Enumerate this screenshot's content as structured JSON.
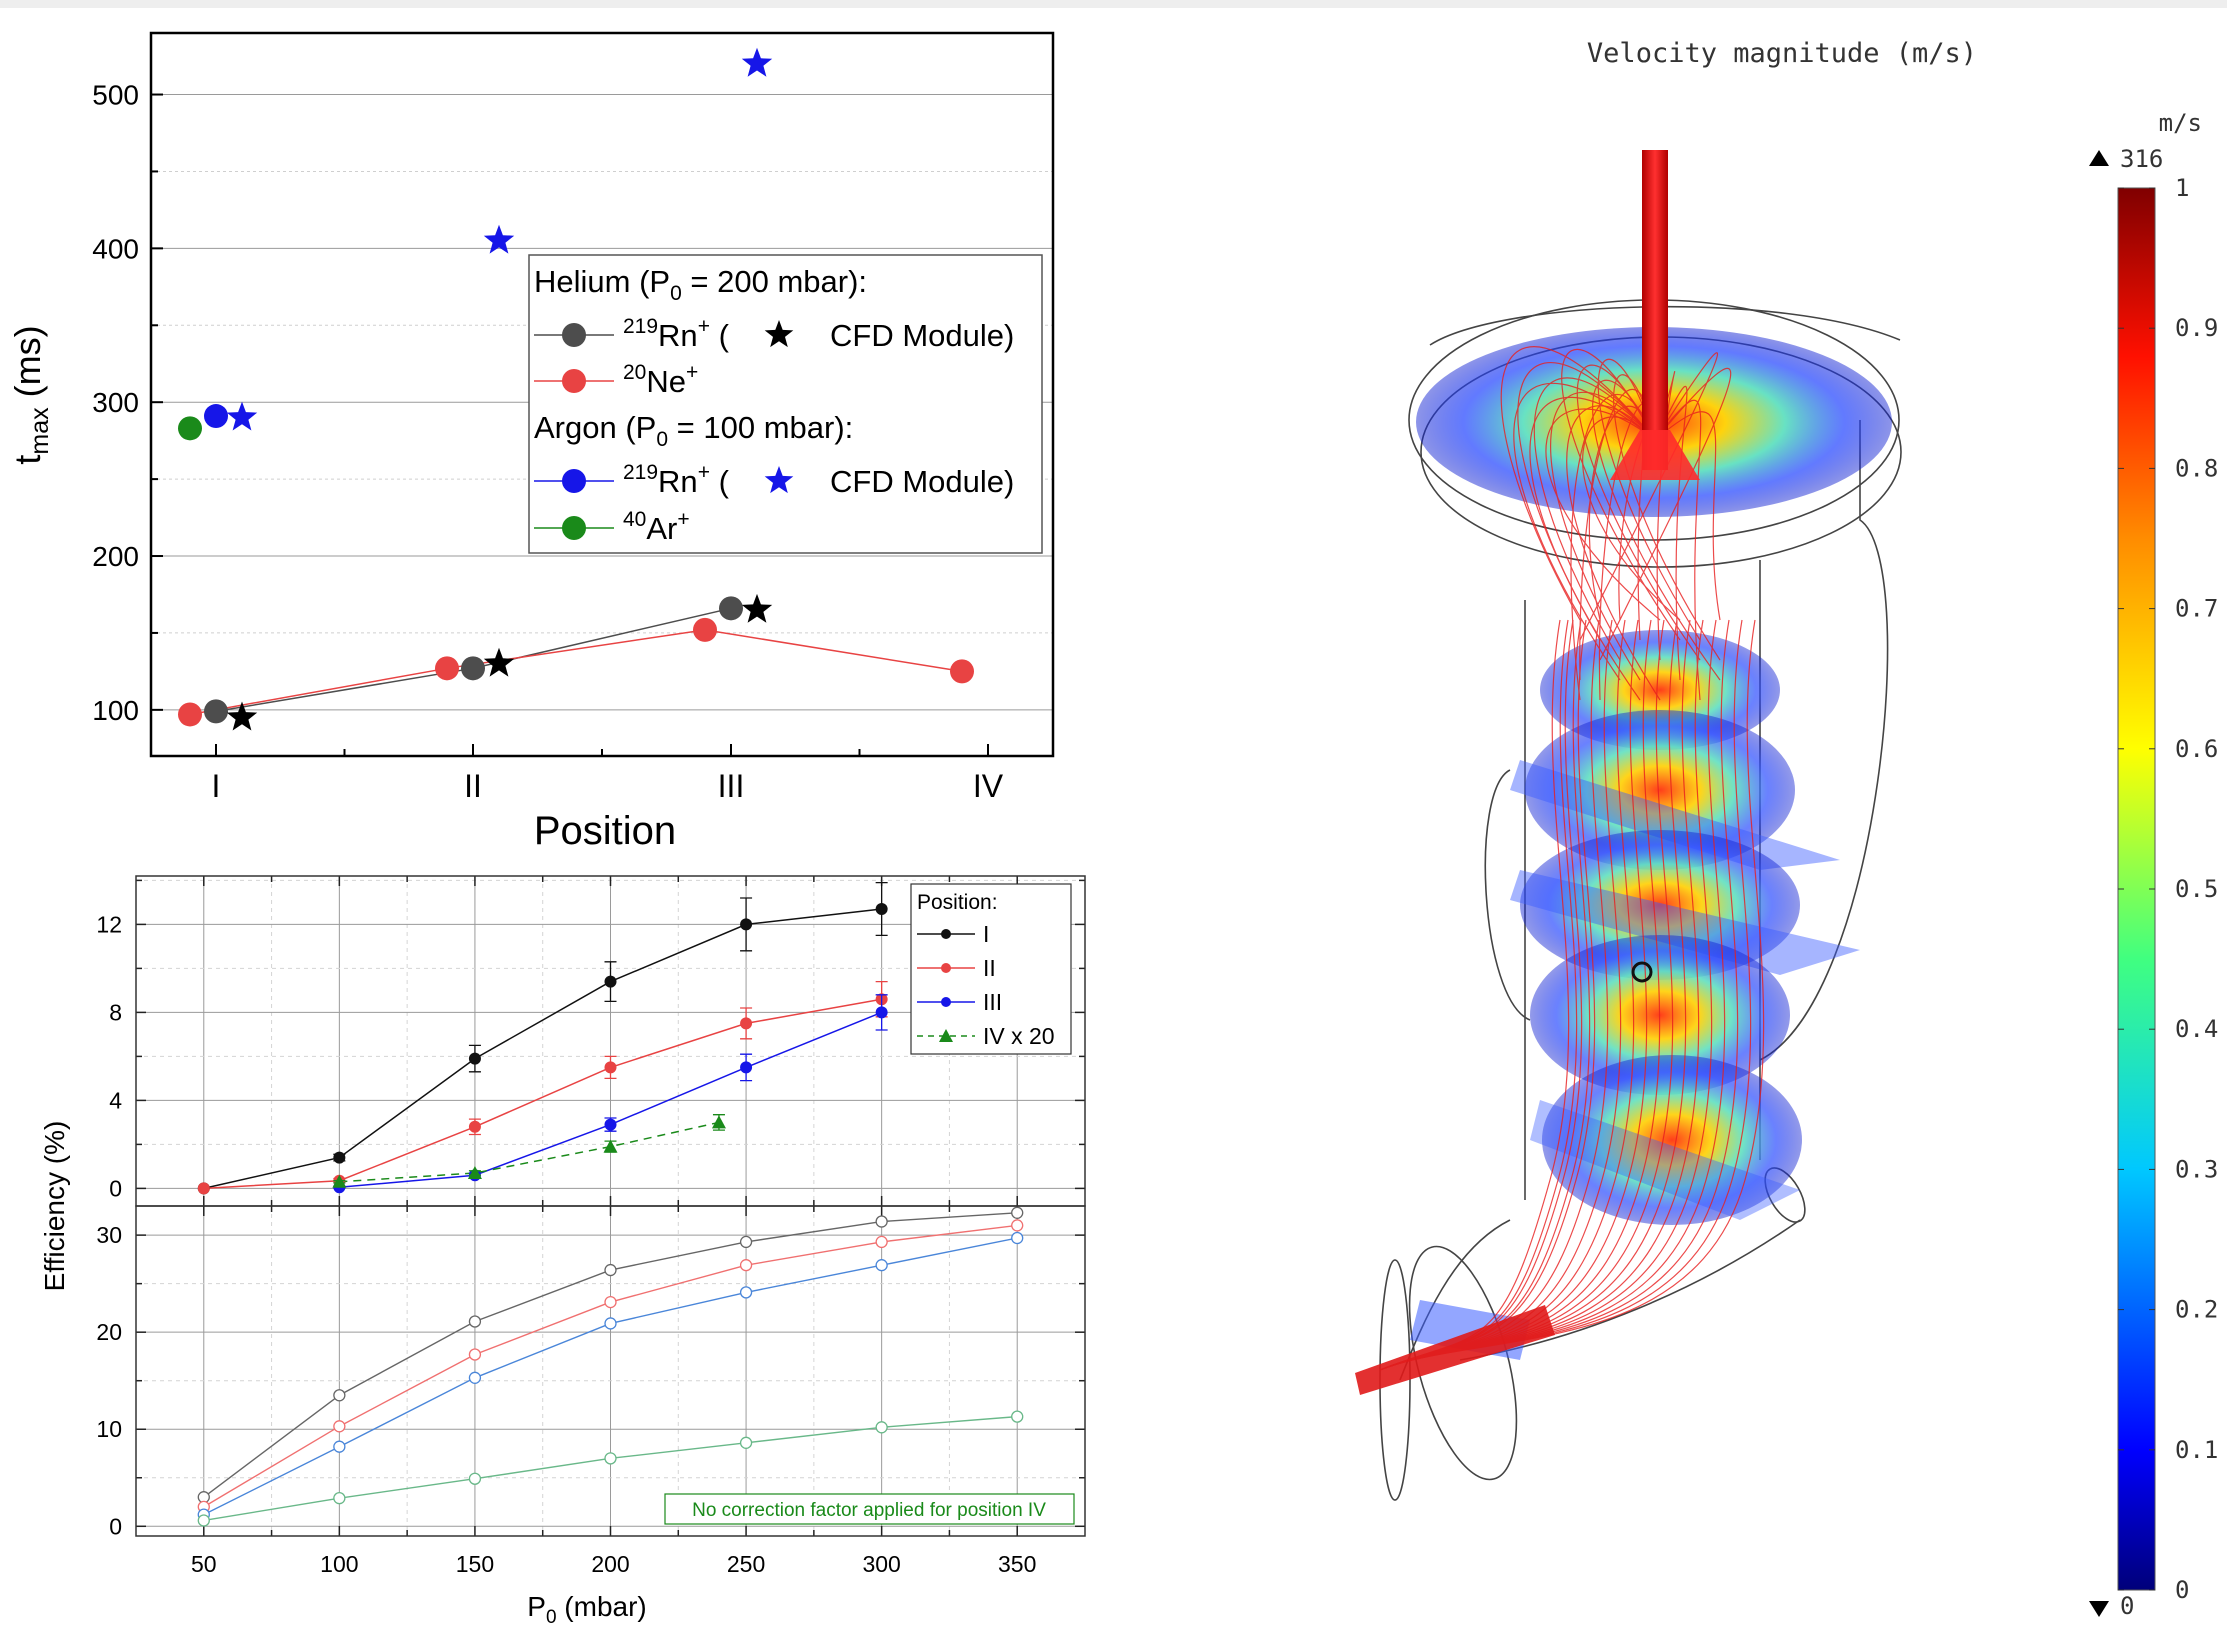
{
  "chart_data": [
    {
      "type": "scatter",
      "ylabel": "t",
      "ylabel_sub": "max",
      "ylabel_unit": " (ms)",
      "xlabel": "Position",
      "categories": [
        "I",
        "II",
        "III",
        "IV"
      ],
      "ylim": [
        70,
        540
      ],
      "yticks": [
        100,
        200,
        300,
        400,
        500
      ],
      "grid": "horizontal",
      "legend_position": "right",
      "series": [
        {
          "key": "he_rn",
          "color": "#4d4d4d",
          "connected": true,
          "marker": "circle",
          "points": [
            {
              "x": "I",
              "y": 99
            },
            {
              "x": "II",
              "y": 127
            },
            {
              "x": "III",
              "y": 166
            }
          ]
        },
        {
          "key": "he_rn_cfd",
          "color": "#000000",
          "connected": false,
          "marker": "star",
          "points": [
            {
              "x": "I",
              "y": 95
            },
            {
              "x": "II",
              "y": 130
            },
            {
              "x": "III",
              "y": 165
            }
          ]
        },
        {
          "key": "he_ne",
          "color": "#e84343",
          "connected": true,
          "marker": "circle",
          "points": [
            {
              "x": "I",
              "y": 97
            },
            {
              "x": "II",
              "y": 127
            },
            {
              "x": "III",
              "y": 152
            },
            {
              "x": "IV",
              "y": 125
            }
          ]
        },
        {
          "key": "ar_rn",
          "color": "#1616e8",
          "connected": false,
          "marker": "circle",
          "points": [
            {
              "x": "I",
              "y": 291
            }
          ]
        },
        {
          "key": "ar_rn_cfd",
          "color": "#1616e8",
          "connected": false,
          "marker": "star",
          "points": [
            {
              "x": "I",
              "y": 290
            },
            {
              "x": "II",
              "y": 405
            },
            {
              "x": "III",
              "y": 520
            }
          ]
        },
        {
          "key": "ar_ar",
          "color": "#1a8a1a",
          "connected": false,
          "marker": "circle",
          "points": [
            {
              "x": "I",
              "y": 283
            }
          ]
        }
      ],
      "legend": {
        "helium_header": "Helium (P",
        "helium_header_sub": "0",
        "helium_header_tail": " = 200 mbar):",
        "rn_sup": "219",
        "rn_text": "Rn",
        "plus": "+",
        "open_paren": " (",
        "cfd_text": "CFD Module)",
        "ne_sup": "20",
        "ne_text": "Ne",
        "argon_header": "Argon (P",
        "argon_header_sub": "0",
        "argon_header_tail": " = 100 mbar):",
        "ar_sup": "40",
        "ar_text": "Ar"
      }
    },
    {
      "type": "line",
      "ylabel": "Efficiency (%)",
      "xlabel": "P",
      "xlabel_sub": "0",
      "xlabel_tail": " (mbar)",
      "xlim": [
        25,
        375
      ],
      "xticks": [
        50,
        100,
        150,
        200,
        250,
        300,
        350
      ],
      "ylim": [
        -0.8,
        14.2
      ],
      "yticks": [
        0,
        4,
        8,
        12
      ],
      "grid": true,
      "legend_title": "Position:",
      "legend_position": "top-right",
      "series": [
        {
          "name": "I",
          "color": "#111111",
          "dash": false,
          "marker": "circle",
          "x": [
            50,
            100,
            150,
            200,
            250,
            300
          ],
          "y": [
            0,
            1.4,
            5.9,
            9.4,
            12.0,
            12.7
          ],
          "err": [
            0,
            0.15,
            0.6,
            0.9,
            1.2,
            1.2
          ]
        },
        {
          "name": "II",
          "color": "#e84343",
          "dash": false,
          "marker": "circle",
          "x": [
            50,
            100,
            150,
            200,
            250,
            300
          ],
          "y": [
            0,
            0.35,
            2.8,
            5.5,
            7.5,
            8.6
          ],
          "err": [
            0,
            0.1,
            0.35,
            0.5,
            0.7,
            0.8
          ]
        },
        {
          "name": "III",
          "color": "#1616e8",
          "dash": false,
          "marker": "circle",
          "x": [
            100,
            150,
            200,
            250,
            300
          ],
          "y": [
            0.05,
            0.6,
            2.9,
            5.5,
            8.0
          ],
          "err": [
            0.05,
            0.1,
            0.3,
            0.6,
            0.8
          ]
        },
        {
          "name": "IV x 20",
          "color": "#1a8a1a",
          "dash": true,
          "marker": "triangle",
          "x": [
            100,
            150,
            200,
            240
          ],
          "y": [
            0.3,
            0.7,
            1.9,
            3.0
          ],
          "err": [
            0.05,
            0.1,
            0.25,
            0.35
          ]
        }
      ]
    },
    {
      "type": "line",
      "ylabel": "Efficiency (%)",
      "xlim": [
        25,
        375
      ],
      "xticks": [
        50,
        100,
        150,
        200,
        250,
        300,
        350
      ],
      "ylim": [
        -1,
        33
      ],
      "yticks": [
        0,
        10,
        20,
        30
      ],
      "grid": true,
      "annotation": "No correction factor applied for position IV",
      "series": [
        {
          "color": "#666666",
          "x": [
            50,
            100,
            150,
            200,
            250,
            300,
            350
          ],
          "y": [
            3.0,
            13.5,
            21.1,
            26.4,
            29.3,
            31.4,
            32.3
          ]
        },
        {
          "color": "#f07070",
          "x": [
            50,
            100,
            150,
            200,
            250,
            300,
            350
          ],
          "y": [
            2.0,
            10.3,
            17.7,
            23.1,
            26.9,
            29.3,
            31.0
          ]
        },
        {
          "color": "#4a86d9",
          "x": [
            50,
            100,
            150,
            200,
            250,
            300,
            350
          ],
          "y": [
            1.2,
            8.2,
            15.3,
            20.9,
            24.1,
            26.9,
            29.7
          ]
        },
        {
          "color": "#69b889",
          "x": [
            50,
            100,
            150,
            200,
            250,
            300,
            350
          ],
          "y": [
            0.6,
            2.9,
            4.9,
            7.0,
            8.6,
            10.2,
            11.3
          ]
        }
      ]
    },
    {
      "type": "heatmap",
      "title": "Velocity magnitude (m/s)",
      "colorbar": {
        "unit": "m/s",
        "max_label": "316",
        "min_label": "0",
        "ticks": [
          "1",
          "0.9",
          "0.8",
          "0.7",
          "0.6",
          "0.5",
          "0.4",
          "0.3",
          "0.2",
          "0.1",
          "0"
        ],
        "range": [
          0,
          1
        ],
        "colormap": "rainbow"
      }
    }
  ]
}
